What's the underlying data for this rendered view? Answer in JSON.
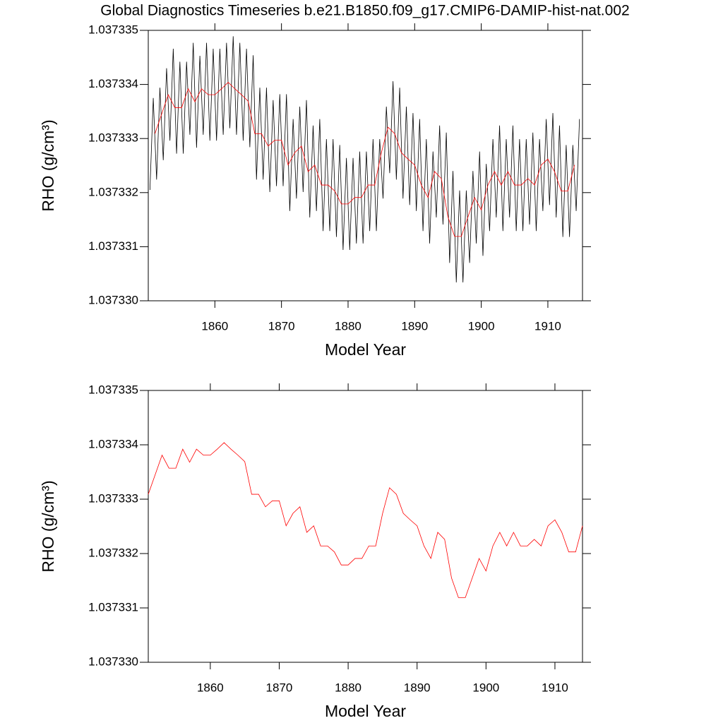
{
  "chart_data": [
    {
      "type": "line",
      "title": "Global Diagnostics Timeseries b.e21.B1850.f09_g17.CMIP6-DAMIP-hist-nat.002",
      "x_label": "Model Year",
      "y_label": "RHO (g/cm³)",
      "xlim": [
        1850,
        1915.2
      ],
      "xticks": [
        1860,
        1870,
        1880,
        1890,
        1900,
        1910
      ],
      "ylim": [
        1.03733,
        1.037335
      ],
      "yticks": [
        {
          "value": 1.03733,
          "label": "1.037330"
        },
        1.037331,
        1.037332,
        1.037333,
        1.037334,
        1.037335
      ],
      "series": [
        {
          "color": "#000000",
          "x": [
            1850.25,
            1850.75,
            1851.25,
            1851.75,
            1852.25,
            1852.75,
            1853.25,
            1853.75,
            1854.25,
            1854.75,
            1855.25,
            1855.75,
            1856.25,
            1856.75,
            1857.25,
            1857.75,
            1858.25,
            1858.75,
            1859.25,
            1859.75,
            1860.25,
            1860.75,
            1861.25,
            1861.75,
            1862.25,
            1862.75,
            1863.25,
            1863.75,
            1864.25,
            1864.75,
            1865.25,
            1865.75,
            1866.25,
            1866.75,
            1867.25,
            1867.75,
            1868.25,
            1868.75,
            1869.25,
            1869.75,
            1870.25,
            1870.75,
            1871.25,
            1871.75,
            1872.25,
            1872.75,
            1873.25,
            1873.75,
            1874.25,
            1874.75,
            1875.25,
            1875.75,
            1876.25,
            1876.75,
            1877.25,
            1877.75,
            1878.25,
            1878.75,
            1879.25,
            1879.75,
            1880.25,
            1880.75,
            1881.25,
            1881.75,
            1882.25,
            1882.75,
            1883.25,
            1883.75,
            1884.25,
            1884.75,
            1885.25,
            1885.75,
            1886.25,
            1886.75,
            1887.25,
            1887.75,
            1888.25,
            1888.75,
            1889.25,
            1889.75,
            1890.25,
            1890.75,
            1891.25,
            1891.75,
            1892.25,
            1892.75,
            1893.25,
            1893.75,
            1894.25,
            1894.75,
            1895.25,
            1895.75,
            1896.25,
            1896.75,
            1897.25,
            1897.75,
            1898.25,
            1898.75,
            1899.25,
            1899.75,
            1900.25,
            1900.75,
            1901.25,
            1901.75,
            1902.25,
            1902.75,
            1903.25,
            1903.75,
            1904.25,
            1904.75,
            1905.25,
            1905.75,
            1906.25,
            1906.75,
            1907.25,
            1907.75,
            1908.25,
            1908.75,
            1909.25,
            1909.75,
            1910.25,
            1910.75,
            1911.25,
            1911.75,
            1912.25,
            1912.75,
            1913.25,
            1913.75,
            1914.25,
            1914.75
          ],
          "values": [
            1.03733205,
            1.03733375,
            1.03733224,
            1.03733394,
            1.0373326,
            1.0373343,
            1.03733296,
            1.03733466,
            1.03733272,
            1.03733442,
            1.03733272,
            1.03733442,
            1.03733307,
            1.03733477,
            1.03733283,
            1.03733453,
            1.03733307,
            1.03733477,
            1.03733296,
            1.03733466,
            1.03733296,
            1.03733466,
            1.03733307,
            1.03733477,
            1.03733319,
            1.03733489,
            1.03733307,
            1.03733477,
            1.03733296,
            1.03733466,
            1.03733284,
            1.03733454,
            1.03733224,
            1.03733394,
            1.03733224,
            1.03733394,
            1.03733201,
            1.03733371,
            1.03733212,
            1.03733382,
            1.03733212,
            1.03733382,
            1.03733166,
            1.03733336,
            1.03733189,
            1.03733359,
            1.03733201,
            1.03733371,
            1.03733154,
            1.03733324,
            1.03733166,
            1.03733336,
            1.03733129,
            1.03733299,
            1.03733129,
            1.03733299,
            1.03733118,
            1.03733288,
            1.03733094,
            1.03733264,
            1.03733094,
            1.03733264,
            1.03733106,
            1.03733276,
            1.03733106,
            1.03733276,
            1.03733129,
            1.03733299,
            1.03733129,
            1.03733299,
            1.03733189,
            1.03733359,
            1.03733236,
            1.03733406,
            1.03733224,
            1.03733394,
            1.03733189,
            1.03733359,
            1.03733177,
            1.03733347,
            1.03733166,
            1.03733336,
            1.03733129,
            1.03733299,
            1.03733106,
            1.03733276,
            1.03733154,
            1.03733324,
            1.03733141,
            1.03733311,
            1.0373307,
            1.0373324,
            1.03733034,
            1.03733204,
            1.03733034,
            1.03733204,
            1.0373307,
            1.0373324,
            1.03733106,
            1.03733276,
            1.03733083,
            1.03733253,
            1.03733129,
            1.03733299,
            1.03733154,
            1.03733324,
            1.03733129,
            1.03733299,
            1.03733154,
            1.03733324,
            1.03733129,
            1.03733299,
            1.03733129,
            1.03733299,
            1.03733141,
            1.03733311,
            1.03733129,
            1.03733299,
            1.03733166,
            1.03733336,
            1.03733177,
            1.03733347,
            1.03733154,
            1.03733324,
            1.03733118,
            1.03733288,
            1.03733118,
            1.03733288,
            1.03733166,
            1.03733336
          ]
        },
        {
          "color": "#ff0000",
          "x": [
            1851,
            1852,
            1853,
            1854,
            1855,
            1856,
            1857,
            1858,
            1859,
            1860,
            1861,
            1862,
            1863,
            1864,
            1865,
            1866,
            1867,
            1868,
            1869,
            1870,
            1871,
            1872,
            1873,
            1874,
            1875,
            1876,
            1877,
            1878,
            1879,
            1880,
            1881,
            1882,
            1883,
            1884,
            1885,
            1886,
            1887,
            1888,
            1889,
            1890,
            1891,
            1892,
            1893,
            1894,
            1895,
            1896,
            1897,
            1898,
            1899,
            1900,
            1901,
            1902,
            1903,
            1904,
            1905,
            1906,
            1907,
            1908,
            1909,
            1910,
            1911,
            1912,
            1913,
            1914
          ],
          "values": [
            1.03733309,
            1.03733345,
            1.03733381,
            1.03733357,
            1.03733357,
            1.03733392,
            1.03733368,
            1.03733392,
            1.03733381,
            1.03733381,
            1.03733392,
            1.03733404,
            1.03733392,
            1.03733381,
            1.03733369,
            1.03733309,
            1.03733309,
            1.03733286,
            1.03733297,
            1.03733297,
            1.03733251,
            1.03733274,
            1.03733286,
            1.03733239,
            1.03733251,
            1.03733214,
            1.03733214,
            1.03733203,
            1.03733179,
            1.03733179,
            1.03733191,
            1.03733191,
            1.03733214,
            1.03733214,
            1.03733274,
            1.03733321,
            1.03733309,
            1.03733274,
            1.03733262,
            1.03733251,
            1.03733214,
            1.03733191,
            1.03733239,
            1.03733226,
            1.03733155,
            1.03733119,
            1.03733119,
            1.03733155,
            1.03733191,
            1.03733168,
            1.03733214,
            1.03733239,
            1.03733214,
            1.03733239,
            1.03733214,
            1.03733214,
            1.03733226,
            1.03733214,
            1.03733251,
            1.03733262,
            1.03733239,
            1.03733203,
            1.03733203,
            1.03733251
          ]
        }
      ]
    },
    {
      "type": "line",
      "x_label": "Model Year",
      "y_label": "RHO (g/cm³)",
      "xlim": [
        1851,
        1914
      ],
      "xticks": [
        1860,
        1870,
        1880,
        1890,
        1900,
        1910
      ],
      "ylim": [
        1.03733,
        1.037335
      ],
      "yticks": [
        {
          "value": 1.03733,
          "label": "1.037330"
        },
        1.037331,
        1.037332,
        1.037333,
        1.037334,
        1.037335
      ],
      "series": [
        {
          "color": "#ff0000",
          "x": [
            1851,
            1852,
            1853,
            1854,
            1855,
            1856,
            1857,
            1858,
            1859,
            1860,
            1861,
            1862,
            1863,
            1864,
            1865,
            1866,
            1867,
            1868,
            1869,
            1870,
            1871,
            1872,
            1873,
            1874,
            1875,
            1876,
            1877,
            1878,
            1879,
            1880,
            1881,
            1882,
            1883,
            1884,
            1885,
            1886,
            1887,
            1888,
            1889,
            1890,
            1891,
            1892,
            1893,
            1894,
            1895,
            1896,
            1897,
            1898,
            1899,
            1900,
            1901,
            1902,
            1903,
            1904,
            1905,
            1906,
            1907,
            1908,
            1909,
            1910,
            1911,
            1912,
            1913,
            1914
          ],
          "values": [
            1.03733309,
            1.03733345,
            1.03733381,
            1.03733357,
            1.03733357,
            1.03733392,
            1.03733368,
            1.03733392,
            1.03733381,
            1.03733381,
            1.03733392,
            1.03733404,
            1.03733392,
            1.03733381,
            1.03733369,
            1.03733309,
            1.03733309,
            1.03733286,
            1.03733297,
            1.03733297,
            1.03733251,
            1.03733274,
            1.03733286,
            1.03733239,
            1.03733251,
            1.03733214,
            1.03733214,
            1.03733203,
            1.03733179,
            1.03733179,
            1.03733191,
            1.03733191,
            1.03733214,
            1.03733214,
            1.03733274,
            1.03733321,
            1.03733309,
            1.03733274,
            1.03733262,
            1.03733251,
            1.03733214,
            1.03733191,
            1.03733239,
            1.03733226,
            1.03733155,
            1.03733119,
            1.03733119,
            1.03733155,
            1.03733191,
            1.03733168,
            1.03733214,
            1.03733239,
            1.03733214,
            1.03733239,
            1.03733214,
            1.03733214,
            1.03733226,
            1.03733214,
            1.03733251,
            1.03733262,
            1.03733239,
            1.03733203,
            1.03733203,
            1.03733251
          ]
        }
      ]
    }
  ]
}
